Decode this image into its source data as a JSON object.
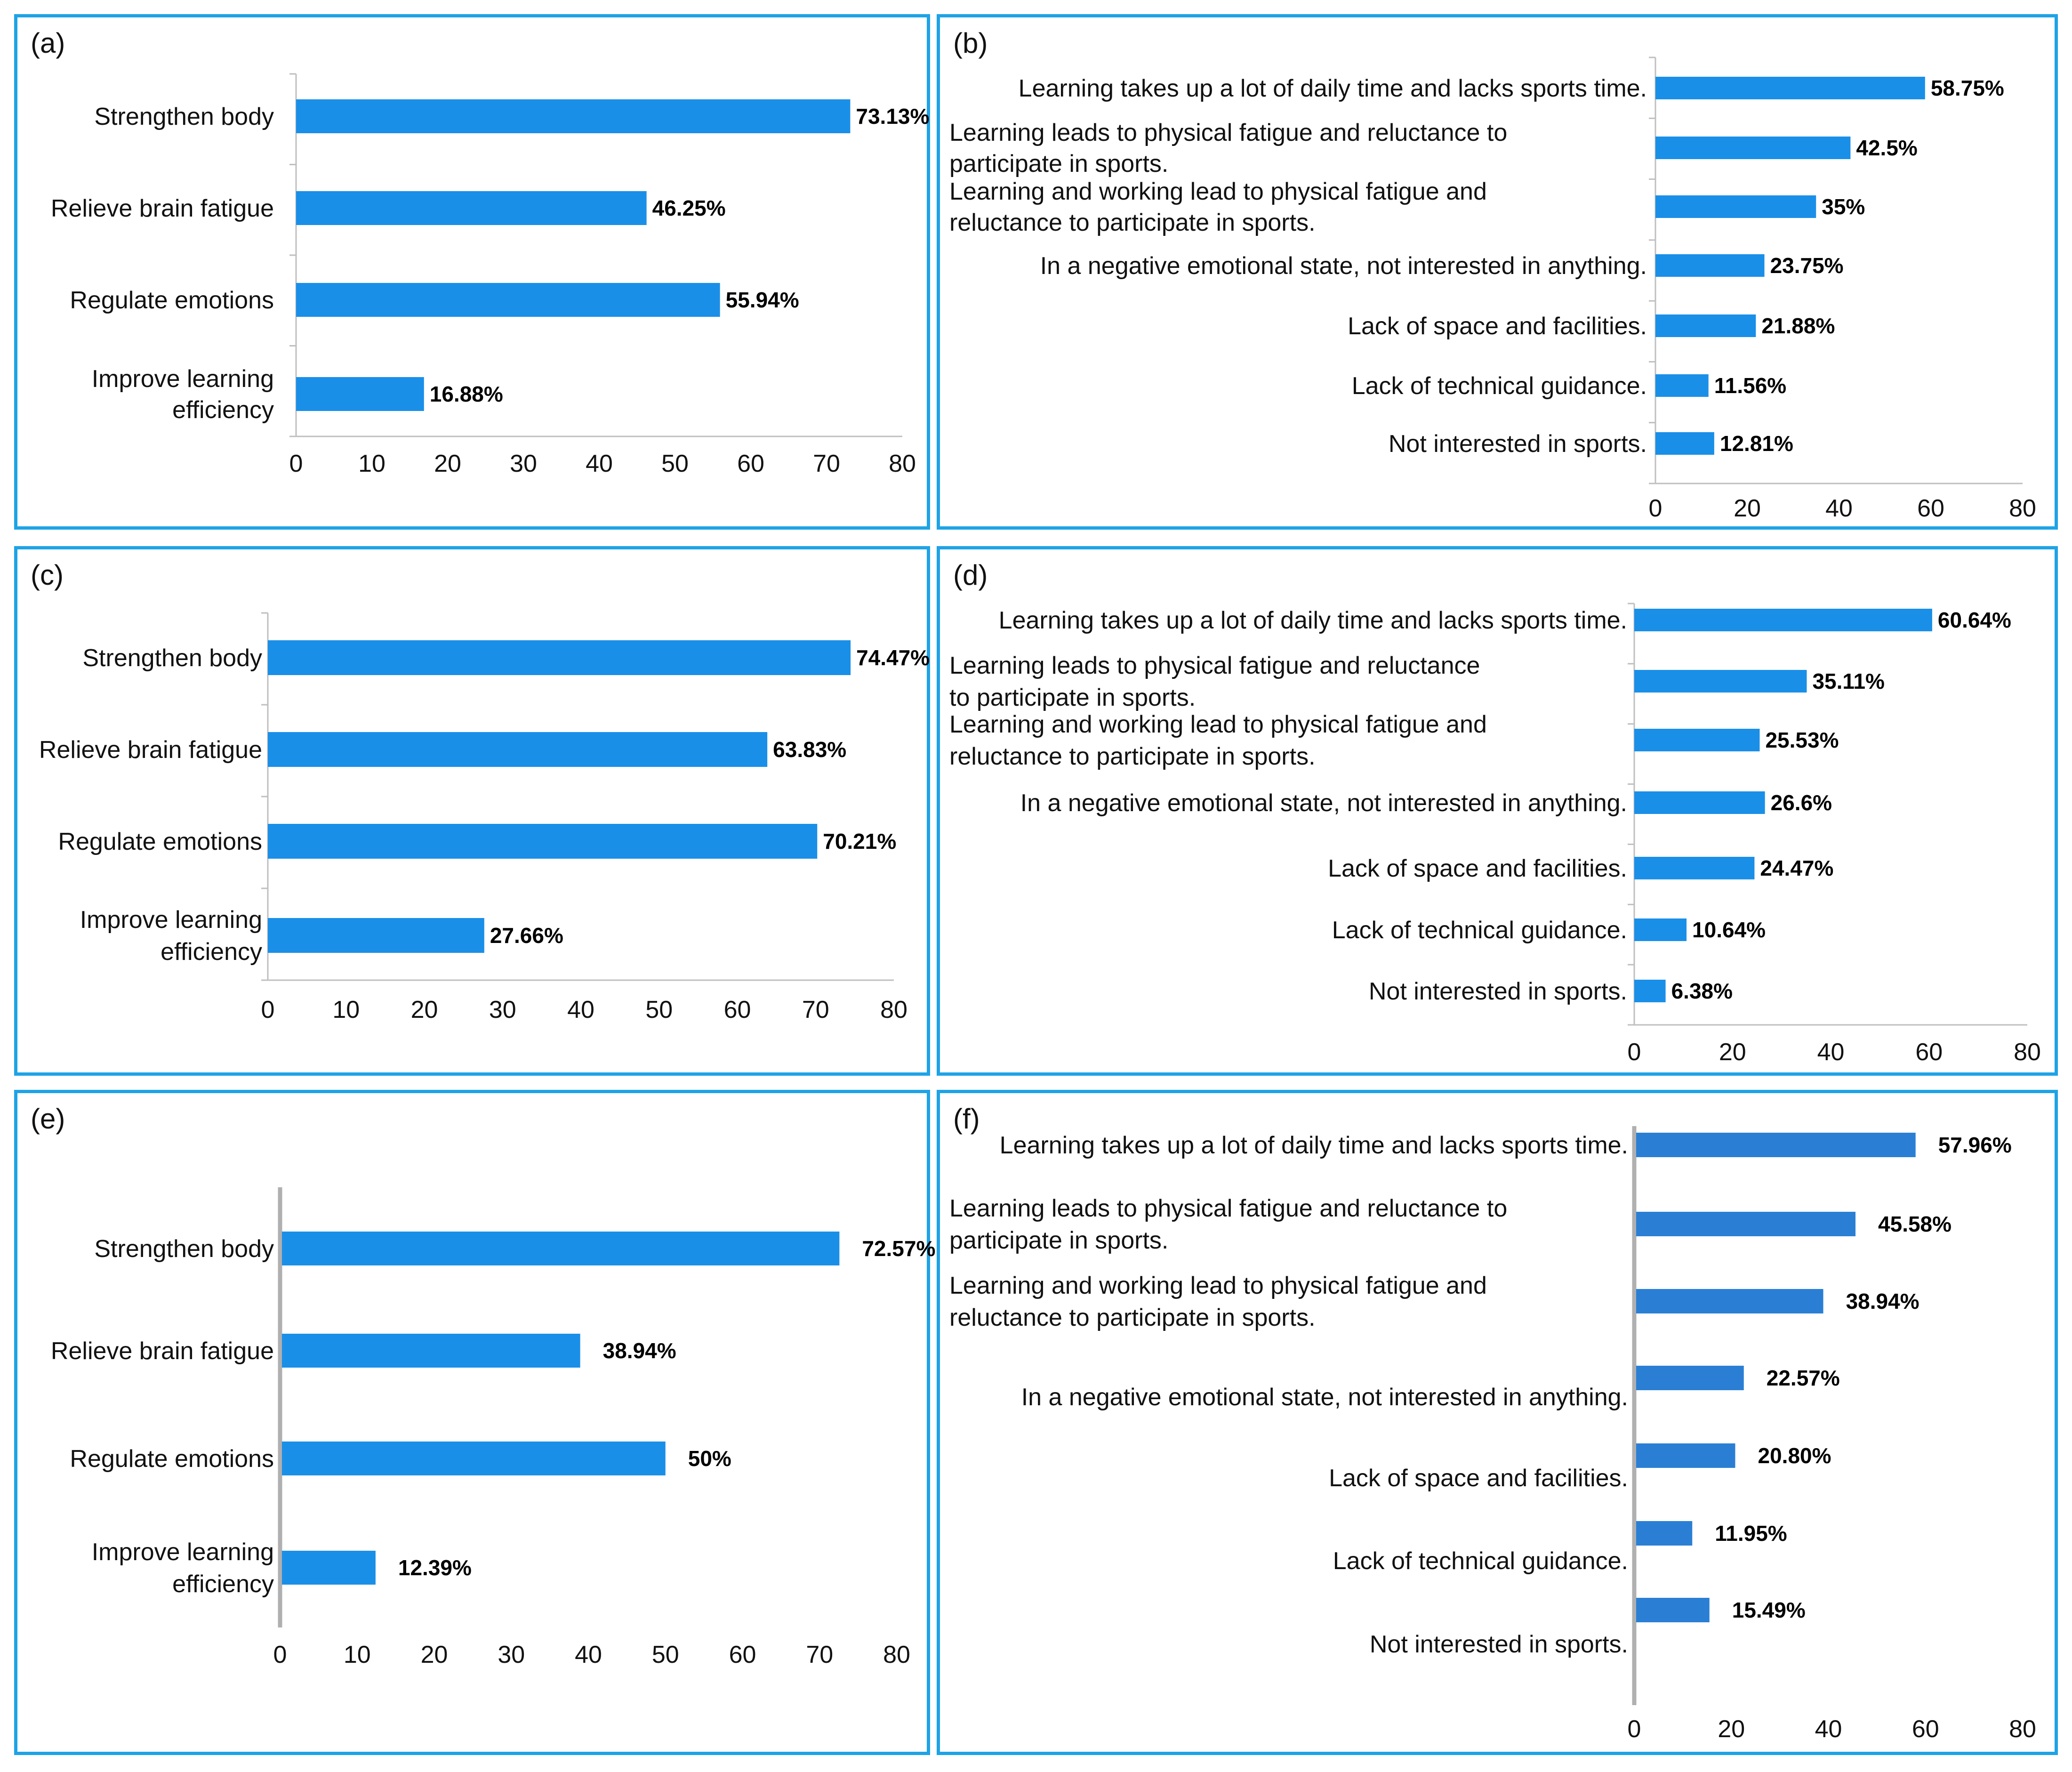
{
  "accent": "#1ea3e6",
  "bar_color": "#1a8fe8",
  "chart_data": [
    {
      "id": "a",
      "panel_label": "(a)",
      "type": "bar",
      "orientation": "horizontal",
      "categories": [
        [
          "Strengthen body"
        ],
        [
          "Relieve brain fatigue"
        ],
        [
          "Regulate emotions"
        ],
        [
          "Improve learning",
          "efficiency"
        ]
      ],
      "values": [
        73.13,
        46.25,
        55.94,
        16.88
      ],
      "value_labels": [
        "73.13%",
        "46.25%",
        "55.94%",
        "16.88%"
      ],
      "xlim": [
        0,
        80
      ],
      "xticks": [
        0,
        10,
        20,
        30,
        40,
        50,
        60,
        70,
        80
      ],
      "xtick_labels": [
        "0",
        "10",
        "20",
        "30",
        "40",
        "50",
        "60",
        "70",
        "80"
      ]
    },
    {
      "id": "b",
      "panel_label": "(b)",
      "type": "bar",
      "orientation": "horizontal",
      "categories": [
        [
          "Learning takes up a lot of daily time and lacks sports time."
        ],
        [
          "Learning leads to physical fatigue and reluctance to",
          "participate in sports."
        ],
        [
          "Learning and working lead to physical fatigue and",
          "reluctance to participate in sports."
        ],
        [
          "In a negative emotional state, not interested in anything."
        ],
        [
          "Lack of space and facilities."
        ],
        [
          "Lack of technical guidance."
        ],
        [
          "Not interested in sports."
        ]
      ],
      "values": [
        58.75,
        42.5,
        35,
        23.75,
        21.88,
        11.56,
        12.81
      ],
      "value_labels": [
        "58.75%",
        "42.5%",
        "35%",
        "23.75%",
        "21.88%",
        "11.56%",
        "12.81%"
      ],
      "xlim": [
        0,
        80
      ],
      "xticks": [
        0,
        20,
        40,
        60,
        80
      ],
      "xtick_labels": [
        "0",
        "20",
        "40",
        "60",
        "80"
      ]
    },
    {
      "id": "c",
      "panel_label": "(c)",
      "type": "bar",
      "orientation": "horizontal",
      "categories": [
        [
          "Strengthen body"
        ],
        [
          "Relieve brain fatigue"
        ],
        [
          "Regulate emotions"
        ],
        [
          "Improve learning",
          "efficiency"
        ]
      ],
      "values": [
        74.47,
        63.83,
        70.21,
        27.66
      ],
      "value_labels": [
        "74.47%",
        "63.83%",
        "70.21%",
        "27.66%"
      ],
      "xlim": [
        0,
        80
      ],
      "xticks": [
        0,
        10,
        20,
        30,
        40,
        50,
        60,
        70,
        80
      ],
      "xtick_labels": [
        "0",
        "10",
        "20",
        "30",
        "40",
        "50",
        "60",
        "70",
        "80"
      ]
    },
    {
      "id": "d",
      "panel_label": "(d)",
      "type": "bar",
      "orientation": "horizontal",
      "categories": [
        [
          "Learning takes up a lot of daily time and lacks sports time."
        ],
        [
          "Learning leads to physical fatigue and reluctance",
          "to participate in sports."
        ],
        [
          "Learning and working lead to physical fatigue and",
          "reluctance to participate in sports."
        ],
        [
          "In a negative emotional state, not interested in anything."
        ],
        [
          "Lack of space and facilities."
        ],
        [
          "Lack of technical guidance."
        ],
        [
          "Not interested in sports."
        ]
      ],
      "values": [
        60.64,
        35.11,
        25.53,
        26.6,
        24.47,
        10.64,
        6.38
      ],
      "value_labels": [
        "60.64%",
        "35.11%",
        "25.53%",
        "26.6%",
        "24.47%",
        "10.64%",
        "6.38%"
      ],
      "xlim": [
        0,
        80
      ],
      "xticks": [
        0,
        20,
        40,
        60,
        80
      ],
      "xtick_labels": [
        "0",
        "20",
        "40",
        "60",
        "80"
      ]
    },
    {
      "id": "e",
      "panel_label": "(e)",
      "type": "bar",
      "orientation": "horizontal",
      "categories": [
        [
          "Strengthen body"
        ],
        [
          "Relieve brain fatigue"
        ],
        [
          "Regulate emotions"
        ],
        [
          "Improve learning",
          "efficiency"
        ]
      ],
      "values": [
        72.57,
        38.94,
        50,
        12.39
      ],
      "value_labels": [
        "72.57%",
        "38.94%",
        "50%",
        "12.39%"
      ],
      "xlim": [
        0,
        80
      ],
      "xticks": [
        0,
        10,
        20,
        30,
        40,
        50,
        60,
        70,
        80
      ],
      "xtick_labels": [
        "0",
        "10",
        "20",
        "30",
        "40",
        "50",
        "60",
        "70",
        "80"
      ]
    },
    {
      "id": "f",
      "panel_label": "(f)",
      "type": "bar",
      "orientation": "horizontal",
      "categories": [
        [
          "Learning takes up a lot of daily time and lacks sports time."
        ],
        [
          "Learning leads to physical fatigue and reluctance to",
          "participate in sports."
        ],
        [
          "Learning and working lead to physical fatigue and",
          "reluctance to participate in sports."
        ],
        [
          "In a negative emotional state, not interested in anything."
        ],
        [
          "Lack of space and facilities."
        ],
        [
          "Lack of technical guidance."
        ],
        [
          "Not interested in sports."
        ]
      ],
      "values": [
        57.96,
        45.58,
        38.94,
        22.57,
        20.8,
        11.95,
        15.49
      ],
      "value_labels": [
        "57.96%",
        "45.58%",
        "38.94%",
        "22.57%",
        "20.80%",
        "11.95%",
        "15.49%"
      ],
      "xlim": [
        0,
        80
      ],
      "xticks": [
        0,
        20,
        40,
        60,
        80
      ],
      "xtick_labels": [
        "0",
        "20",
        "40",
        "60",
        "80"
      ]
    }
  ]
}
